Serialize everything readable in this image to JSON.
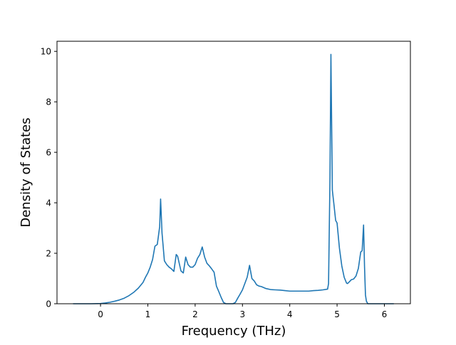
{
  "chart_data": {
    "type": "line",
    "xlabel": "Frequency (THz)",
    "ylabel": "Density of States",
    "xlim": [
      -0.92,
      6.55
    ],
    "ylim": [
      0,
      10.4
    ],
    "x_ticks": [
      0,
      1,
      2,
      3,
      4,
      5,
      6
    ],
    "y_ticks": [
      0,
      2,
      4,
      6,
      8,
      10
    ],
    "x_tick_labels": [
      "0",
      "1",
      "2",
      "3",
      "4",
      "5",
      "6"
    ],
    "y_tick_labels": [
      "0",
      "2",
      "4",
      "6",
      "8",
      "10"
    ],
    "grid": false,
    "line_color": "#1f77b4",
    "series": [
      {
        "x": [
          -0.58,
          -0.2,
          0.0,
          0.1,
          0.2,
          0.3,
          0.4,
          0.5,
          0.6,
          0.7,
          0.8,
          0.9,
          0.95,
          1.0,
          1.05,
          1.1,
          1.15,
          1.2,
          1.25,
          1.27,
          1.3,
          1.35,
          1.4,
          1.45,
          1.5,
          1.55,
          1.6,
          1.63,
          1.67,
          1.7,
          1.75,
          1.8,
          1.85,
          1.9,
          1.95,
          2.0,
          2.05,
          2.1,
          2.15,
          2.2,
          2.25,
          2.3,
          2.35,
          2.4,
          2.45,
          2.5,
          2.55,
          2.6,
          2.65,
          2.7,
          2.75,
          2.8,
          2.85,
          2.9,
          2.95,
          3.0,
          3.05,
          3.1,
          3.15,
          3.2,
          3.25,
          3.3,
          3.35,
          3.4,
          3.5,
          3.6,
          3.7,
          3.8,
          3.9,
          4.0,
          4.1,
          4.2,
          4.3,
          4.4,
          4.5,
          4.6,
          4.7,
          4.8,
          4.82,
          4.85,
          4.87,
          4.9,
          4.93,
          4.97,
          5.0,
          5.05,
          5.1,
          5.15,
          5.2,
          5.22,
          5.25,
          5.3,
          5.35,
          5.4,
          5.45,
          5.5,
          5.53,
          5.56,
          5.58,
          5.6,
          5.62,
          5.65,
          5.7,
          5.8,
          6.0,
          6.2
        ],
        "y": [
          0.0,
          0.0,
          0.01,
          0.03,
          0.06,
          0.1,
          0.15,
          0.22,
          0.32,
          0.45,
          0.62,
          0.85,
          1.05,
          1.22,
          1.45,
          1.75,
          2.28,
          2.35,
          3.05,
          4.15,
          2.8,
          1.7,
          1.55,
          1.45,
          1.38,
          1.28,
          1.95,
          1.88,
          1.55,
          1.3,
          1.22,
          1.85,
          1.55,
          1.45,
          1.45,
          1.55,
          1.8,
          1.95,
          2.25,
          1.85,
          1.6,
          1.5,
          1.38,
          1.25,
          0.7,
          0.48,
          0.25,
          0.05,
          0.0,
          0.0,
          0.0,
          0.0,
          0.05,
          0.22,
          0.38,
          0.55,
          0.8,
          1.05,
          1.52,
          1.0,
          0.9,
          0.75,
          0.7,
          0.68,
          0.6,
          0.56,
          0.55,
          0.54,
          0.52,
          0.5,
          0.5,
          0.5,
          0.5,
          0.5,
          0.52,
          0.53,
          0.55,
          0.58,
          0.8,
          5.0,
          9.88,
          4.5,
          4.0,
          3.3,
          3.2,
          2.2,
          1.5,
          1.05,
          0.82,
          0.8,
          0.85,
          0.95,
          0.98,
          1.1,
          1.4,
          2.05,
          2.1,
          3.12,
          1.5,
          0.35,
          0.1,
          0.0,
          0.0,
          0.0,
          0.0,
          0.0
        ]
      }
    ]
  }
}
